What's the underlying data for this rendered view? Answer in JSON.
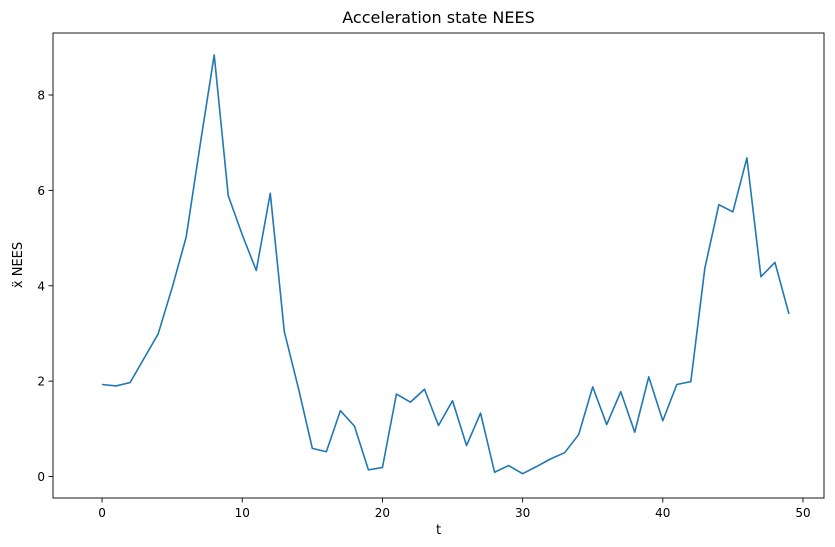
{
  "chart_data": {
    "type": "line",
    "title": "Acceleration state NEES",
    "xlabel": "t",
    "ylabel": "ẍ  NEES",
    "xlim": [
      -3.5,
      51.5
    ],
    "ylim": [
      -0.45,
      9.3
    ],
    "xticks": [
      0,
      10,
      20,
      30,
      40,
      50
    ],
    "yticks": [
      0,
      2,
      4,
      6,
      8
    ],
    "grid": false,
    "series": [
      {
        "color": "#1f77b4",
        "x": [
          0,
          1,
          2,
          3,
          4,
          5,
          6,
          7,
          8,
          9,
          10,
          11,
          12,
          13,
          14,
          15,
          16,
          17,
          18,
          19,
          20,
          21,
          22,
          23,
          24,
          25,
          26,
          27,
          28,
          29,
          30,
          31,
          32,
          33,
          34,
          35,
          36,
          37,
          38,
          39,
          40,
          41,
          42,
          43,
          44,
          45,
          46,
          47,
          48,
          49
        ],
        "y": [
          1.93,
          1.9,
          1.97,
          2.48,
          2.99,
          3.96,
          5.02,
          6.96,
          8.84,
          5.89,
          5.07,
          4.32,
          5.94,
          3.04,
          1.86,
          0.59,
          0.52,
          1.38,
          1.06,
          0.14,
          0.19,
          1.73,
          1.56,
          1.83,
          1.07,
          1.59,
          0.65,
          1.33,
          0.09,
          0.23,
          0.06,
          0.21,
          0.37,
          0.5,
          0.88,
          1.88,
          1.09,
          1.78,
          0.93,
          2.09,
          1.17,
          1.93,
          1.99,
          4.37,
          5.7,
          5.55,
          6.68,
          4.19,
          4.49,
          3.41
        ]
      }
    ]
  }
}
